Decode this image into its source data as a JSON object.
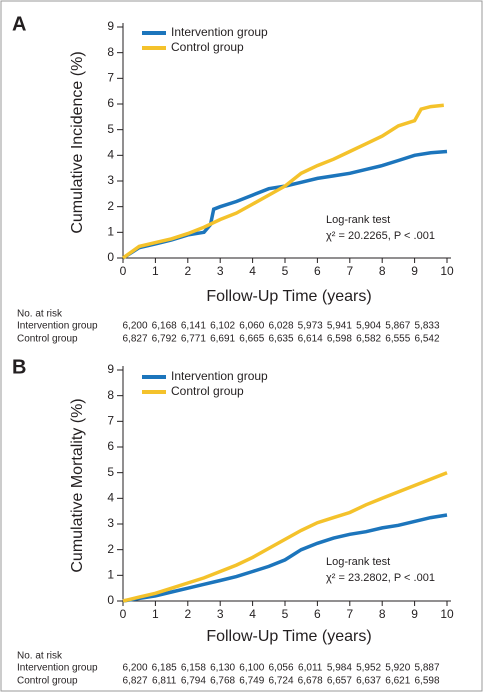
{
  "chart_data": [
    {
      "type": "line",
      "panel_label": "A",
      "ylabel": "Cumulative Incidence (%)",
      "xlabel": "Follow-Up Time (years)",
      "xlim": [
        0,
        10
      ],
      "xticks": [
        0,
        1,
        2,
        3,
        4,
        5,
        6,
        7,
        8,
        9,
        10
      ],
      "ylim": [
        0,
        9
      ],
      "yticks": [
        0,
        1,
        2,
        3,
        4,
        5,
        6,
        7,
        8,
        9
      ],
      "series": [
        {
          "name": "Intervention group",
          "color": "#1c75bc",
          "x": [
            0,
            0.5,
            1,
            1.5,
            2,
            2.5,
            2.7,
            2.8,
            3,
            3.5,
            4,
            4.5,
            5,
            5.5,
            6,
            6.5,
            7,
            7.5,
            8,
            8.5,
            9,
            9.5,
            10
          ],
          "values": [
            0,
            0.4,
            0.55,
            0.7,
            0.9,
            1.0,
            1.3,
            1.9,
            2.0,
            2.2,
            2.45,
            2.7,
            2.8,
            2.95,
            3.1,
            3.2,
            3.3,
            3.45,
            3.6,
            3.8,
            4.0,
            4.1,
            4.15
          ]
        },
        {
          "name": "Control group",
          "color": "#f4c22b",
          "x": [
            0,
            0.5,
            1,
            1.5,
            2,
            2.5,
            3,
            3.5,
            4,
            4.5,
            5,
            5.5,
            6,
            6.5,
            7,
            7.5,
            8,
            8.5,
            9,
            9.2,
            9.5,
            9.9
          ],
          "values": [
            0,
            0.45,
            0.6,
            0.75,
            0.95,
            1.2,
            1.5,
            1.75,
            2.1,
            2.45,
            2.8,
            3.3,
            3.6,
            3.85,
            4.15,
            4.45,
            4.75,
            5.15,
            5.35,
            5.8,
            5.9,
            5.95
          ]
        }
      ],
      "annotations": [
        "Log-rank test",
        "χ² = 20.2265, P < .001"
      ],
      "risk_table": {
        "title": "No. at risk",
        "rows": [
          {
            "name": "Intervention group",
            "values": [
              "6,200",
              "6,168",
              "6,141",
              "6,102",
              "6,060",
              "6,028",
              "5,973",
              "5,941",
              "5,904",
              "5,867",
              "5,833"
            ]
          },
          {
            "name": "Control group",
            "values": [
              "6,827",
              "6,792",
              "6,771",
              "6,691",
              "6,665",
              "6,635",
              "6,614",
              "6,598",
              "6,582",
              "6,555",
              "6,542"
            ]
          }
        ]
      }
    },
    {
      "type": "line",
      "panel_label": "B",
      "ylabel": "Cumulative Mortality (%)",
      "xlabel": "Follow-Up Time (years)",
      "xlim": [
        0,
        10
      ],
      "xticks": [
        0,
        1,
        2,
        3,
        4,
        5,
        6,
        7,
        8,
        9,
        10
      ],
      "ylim": [
        0,
        9
      ],
      "yticks": [
        0,
        1,
        2,
        3,
        4,
        5,
        6,
        7,
        8,
        9
      ],
      "series": [
        {
          "name": "Intervention group",
          "color": "#1c75bc",
          "x": [
            0,
            0.5,
            1,
            1.5,
            2,
            2.5,
            3,
            3.5,
            4,
            4.5,
            5,
            5.5,
            6,
            6.5,
            7,
            7.5,
            8,
            8.5,
            9,
            9.5,
            10
          ],
          "values": [
            0,
            0.1,
            0.2,
            0.35,
            0.5,
            0.65,
            0.8,
            0.95,
            1.15,
            1.35,
            1.6,
            2.0,
            2.25,
            2.45,
            2.6,
            2.7,
            2.85,
            2.95,
            3.1,
            3.25,
            3.35
          ]
        },
        {
          "name": "Control group",
          "color": "#f4c22b",
          "x": [
            0,
            0.5,
            1,
            1.5,
            2,
            2.5,
            3,
            3.5,
            4,
            4.5,
            5,
            5.5,
            6,
            6.5,
            7,
            7.5,
            8,
            8.5,
            9,
            9.5,
            10
          ],
          "values": [
            0,
            0.15,
            0.3,
            0.5,
            0.7,
            0.9,
            1.15,
            1.4,
            1.7,
            2.05,
            2.4,
            2.75,
            3.05,
            3.25,
            3.45,
            3.75,
            4.0,
            4.25,
            4.5,
            4.75,
            5.0
          ]
        }
      ],
      "annotations": [
        "Log-rank test",
        "χ² = 23.2802, P < .001"
      ],
      "risk_table": {
        "title": "No. at risk",
        "rows": [
          {
            "name": "Intervention group",
            "values": [
              "6,200",
              "6,185",
              "6,158",
              "6,130",
              "6,100",
              "6,056",
              "6,011",
              "5,984",
              "5,952",
              "5,920",
              "5,887"
            ]
          },
          {
            "name": "Control group",
            "values": [
              "6,827",
              "6,811",
              "6,794",
              "6,768",
              "6,749",
              "6,724",
              "6,678",
              "6,657",
              "6,637",
              "6,621",
              "6,598"
            ]
          }
        ]
      }
    }
  ]
}
